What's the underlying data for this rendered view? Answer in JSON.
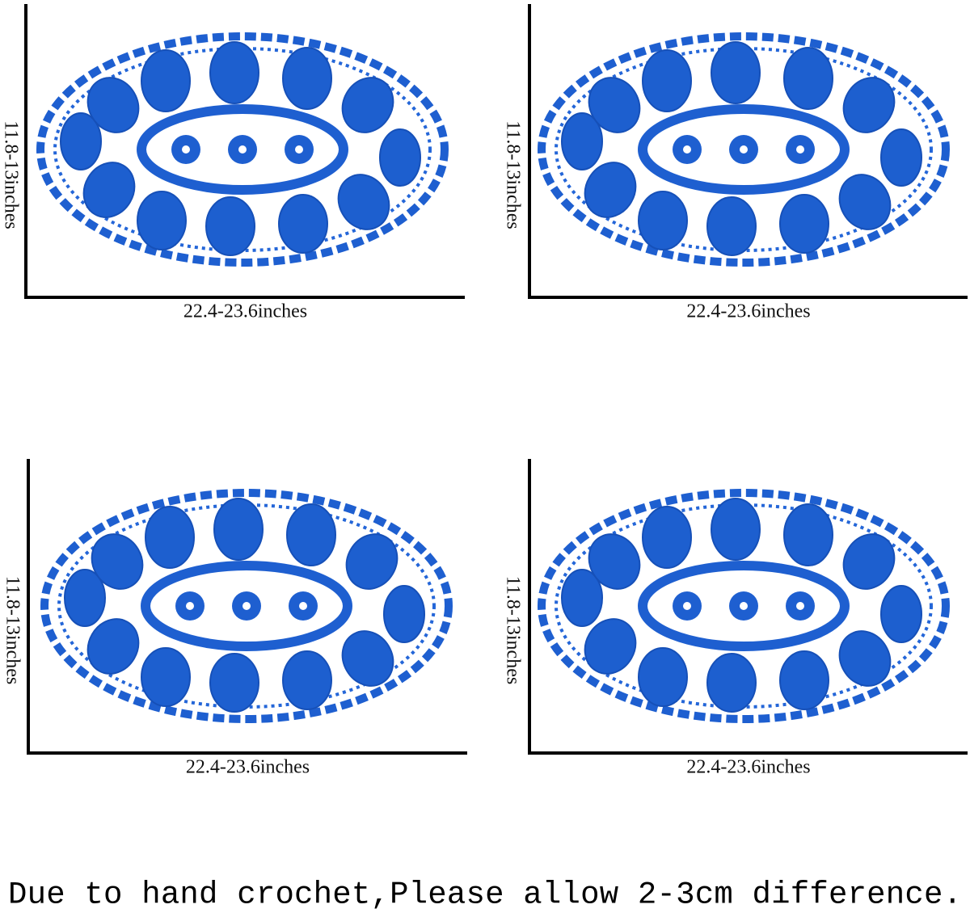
{
  "panels": [
    {
      "height_label": "11.8-13inches",
      "width_label": "22.4-23.6inches"
    },
    {
      "height_label": "11.8-13inches",
      "width_label": "22.4-23.6inches"
    },
    {
      "height_label": "11.8-13inches",
      "width_label": "22.4-23.6inches"
    },
    {
      "height_label": "11.8-13inches",
      "width_label": "22.4-23.6inches"
    }
  ],
  "note": "Due to hand crochet,Please allow 2-3cm difference."
}
